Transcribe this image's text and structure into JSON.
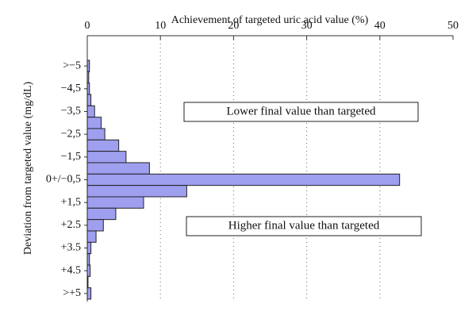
{
  "chart_data": {
    "type": "hbar",
    "x_label": "Achievement of targeted uric acid value (%)",
    "y_label": "Deviation from targeted value (mg/dL)",
    "categories": [
      ">−5",
      null,
      "−4,5",
      null,
      "−3,5",
      null,
      "−2,5",
      null,
      "−1,5",
      null,
      "0+/−0,5",
      null,
      "+1,5",
      null,
      "+2.5",
      null,
      "+3.5",
      null,
      "+4.5",
      null,
      ">+5"
    ],
    "values": [
      0.3,
      0.2,
      0.3,
      0.5,
      1.0,
      1.9,
      2.4,
      4.3,
      5.3,
      8.5,
      42.7,
      13.6,
      7.7,
      3.9,
      2.2,
      1.2,
      0.5,
      0.3,
      0.4,
      0.1,
      0.5
    ],
    "color": "#9f9ff0",
    "xlim": [
      0,
      50
    ],
    "xticks": [
      0,
      10,
      20,
      30,
      40,
      50
    ],
    "grid": true,
    "annotations": [
      "Lower final value than targeted",
      "Higher final value than targeted"
    ]
  }
}
